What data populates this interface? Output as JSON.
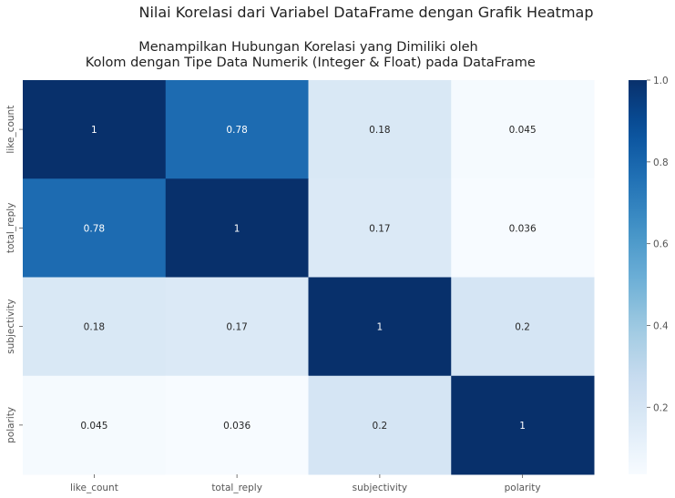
{
  "suptitle": "Nilai Korelasi dari Variabel DataFrame dengan Grafik Heatmap",
  "chart_data": {
    "type": "heatmap",
    "title_lines": [
      "Menampilkan Hubungan Korelasi yang Dimiliki oleh",
      " Kolom dengan Tipe Data Numerik (Integer & Float) pada DataFrame"
    ],
    "x_labels": [
      "like_count",
      "total_reply",
      "subjectivity",
      "polarity"
    ],
    "y_labels": [
      "like_count",
      "total_reply",
      "subjectivity",
      "polarity"
    ],
    "values": [
      [
        1,
        0.78,
        0.18,
        0.045
      ],
      [
        0.78,
        1,
        0.17,
        0.036
      ],
      [
        0.18,
        0.17,
        1,
        0.2
      ],
      [
        0.045,
        0.036,
        0.2,
        1
      ]
    ],
    "annotations": [
      [
        "1",
        "0.78",
        "0.18",
        "0.045"
      ],
      [
        "0.78",
        "1",
        "0.17",
        "0.036"
      ],
      [
        "0.18",
        "0.17",
        "1",
        "0.2"
      ],
      [
        "0.045",
        "0.036",
        "0.2",
        "1"
      ]
    ],
    "colormap": "Blues",
    "colorbar": {
      "vmin": 0.036,
      "vmax": 1,
      "ticks": [
        0.2,
        0.4,
        0.6,
        0.8,
        1.0
      ],
      "tick_labels": [
        "0.2",
        "0.4",
        "0.6",
        "0.8",
        "1.0"
      ]
    }
  }
}
